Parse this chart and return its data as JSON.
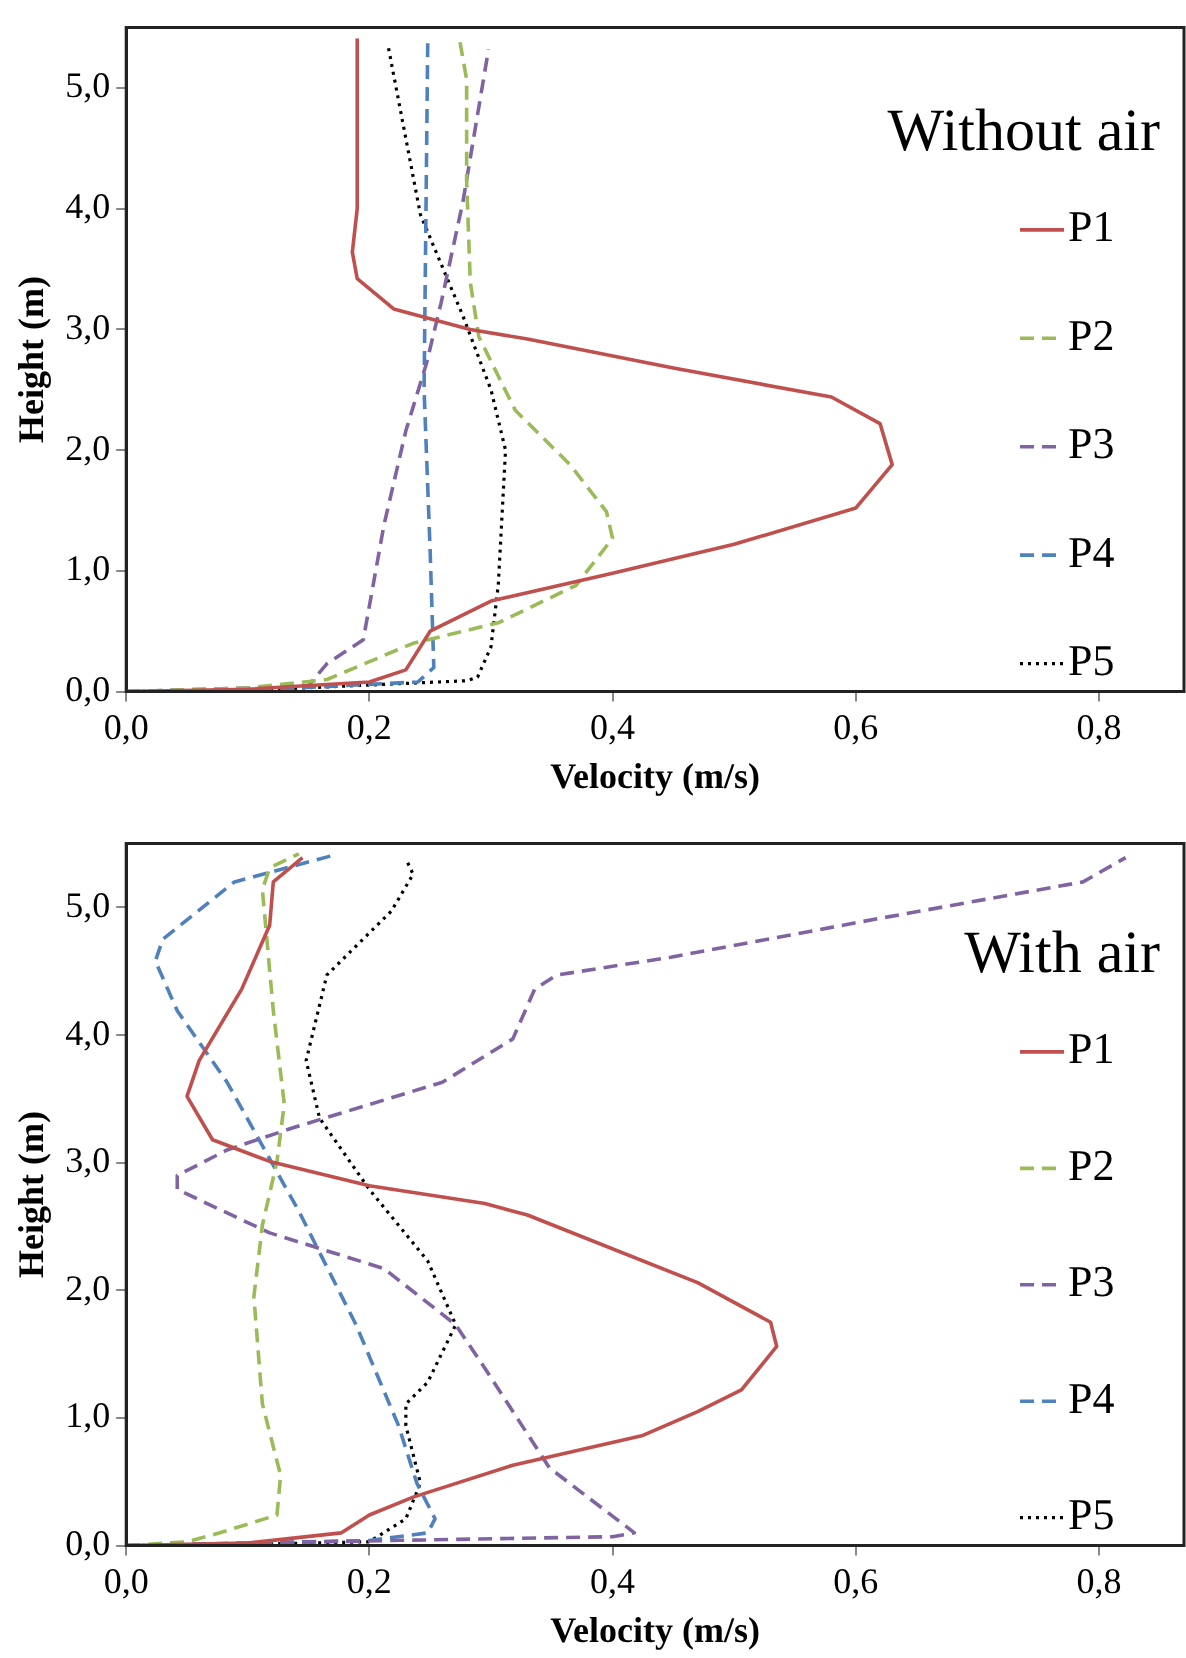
{
  "chart_data": [
    {
      "type": "line",
      "legend_title": "Without air",
      "xlabel": "Velocity (m/s)",
      "ylabel": "Height (m)",
      "legend": "right",
      "grid": false,
      "marker": "none",
      "xlim": [
        0,
        0.87
      ],
      "xticks": [
        {
          "value": 0,
          "label": "0,0"
        },
        {
          "value": 0.2,
          "label": "0,2"
        },
        {
          "value": 0.4,
          "label": "0,4"
        },
        {
          "value": 0.6,
          "label": "0,6"
        },
        {
          "value": 0.8,
          "label": "0,8"
        }
      ],
      "ylim": [
        0,
        5.5
      ],
      "yticks": [
        {
          "value": 0,
          "label": "0,0"
        },
        {
          "value": 1,
          "label": "1,0"
        },
        {
          "value": 2,
          "label": "2,0"
        },
        {
          "value": 3,
          "label": "3,0"
        },
        {
          "value": 4,
          "label": "4,0"
        },
        {
          "value": 5,
          "label": "5,0"
        }
      ],
      "series": [
        {
          "name": "P1",
          "color": "#c0504d",
          "line_style": "solid",
          "x": [
            0,
            0.1,
            0.2,
            0.23,
            0.25,
            0.3,
            0.4,
            0.5,
            0.6,
            0.63,
            0.62,
            0.58,
            0.45,
            0.33,
            0.283,
            0.22,
            0.19,
            0.186,
            0.19,
            0.19
          ],
          "values": [
            0,
            0.02,
            0.08,
            0.18,
            0.5,
            0.75,
            0.98,
            1.22,
            1.52,
            1.88,
            2.22,
            2.44,
            2.68,
            2.92,
            3.0,
            3.17,
            3.42,
            3.64,
            4.0,
            5.41
          ]
        },
        {
          "name": "P2",
          "color": "#9bbb59",
          "line_style": "dashed",
          "x": [
            0,
            0.1,
            0.165,
            0.236,
            0.306,
            0.37,
            0.4,
            0.395,
            0.365,
            0.32,
            0.29,
            0.283,
            0.28,
            0.28,
            0.274
          ],
          "values": [
            0,
            0.03,
            0.1,
            0.4,
            0.57,
            0.88,
            1.27,
            1.49,
            1.88,
            2.33,
            2.94,
            3.39,
            4.23,
            5.07,
            5.41
          ]
        },
        {
          "name": "P3",
          "color": "#8064a2",
          "line_style": "dashed",
          "x": [
            0,
            0.1,
            0.15,
            0.165,
            0.195,
            0.212,
            0.23,
            0.247,
            0.259,
            0.277,
            0.298
          ],
          "values": [
            0,
            0.03,
            0.05,
            0.23,
            0.43,
            1.38,
            2.16,
            2.72,
            3.22,
            4.06,
            5.32
          ]
        },
        {
          "name": "P4",
          "color": "#4f81bd",
          "line_style": "dashed",
          "x": [
            0,
            0.1,
            0.24,
            0.253,
            0.25,
            0.245,
            0.248
          ],
          "values": [
            0,
            0.01,
            0.08,
            0.2,
            1.16,
            2.5,
            5.37
          ]
        },
        {
          "name": "P5",
          "color": "#000000",
          "line_style": "dotted",
          "x": [
            0,
            0.1,
            0.28,
            0.289,
            0.3,
            0.306,
            0.312,
            0.3,
            0.277,
            0.242,
            0.215
          ],
          "values": [
            0,
            0.01,
            0.09,
            0.12,
            0.37,
            0.88,
            2.0,
            2.5,
            3.11,
            3.95,
            5.37
          ]
        }
      ]
    },
    {
      "type": "line",
      "legend_title": "With air",
      "xlabel": "Velocity (m/s)",
      "ylabel": "Height (m)",
      "legend": "right",
      "grid": false,
      "marker": "none",
      "xlim": [
        0,
        0.87
      ],
      "xticks": [
        {
          "value": 0,
          "label": "0,0"
        },
        {
          "value": 0.2,
          "label": "0,2"
        },
        {
          "value": 0.4,
          "label": "0,4"
        },
        {
          "value": 0.6,
          "label": "0,6"
        },
        {
          "value": 0.8,
          "label": "0,8"
        }
      ],
      "ylim": [
        0,
        5.5
      ],
      "yticks": [
        {
          "value": 0,
          "label": "0,0"
        },
        {
          "value": 1,
          "label": "1,0"
        },
        {
          "value": 2,
          "label": "2,0"
        },
        {
          "value": 3,
          "label": "3,0"
        },
        {
          "value": 4,
          "label": "4,0"
        },
        {
          "value": 5,
          "label": "5,0"
        }
      ],
      "series": [
        {
          "name": "P1",
          "color": "#c0504d",
          "line_style": "solid",
          "x": [
            0,
            0.1,
            0.177,
            0.2,
            0.236,
            0.318,
            0.424,
            0.47,
            0.506,
            0.535,
            0.53,
            0.47,
            0.33,
            0.295,
            0.2,
            0.118,
            0.071,
            0.05,
            0.06,
            0.095,
            0.118,
            0.121,
            0.145
          ],
          "values": [
            0,
            0.02,
            0.1,
            0.24,
            0.38,
            0.63,
            0.86,
            1.05,
            1.22,
            1.56,
            1.75,
            2.06,
            2.59,
            2.68,
            2.82,
            3.01,
            3.18,
            3.52,
            3.8,
            4.36,
            4.86,
            5.2,
            5.39
          ]
        },
        {
          "name": "P2",
          "color": "#9bbb59",
          "line_style": "dashed",
          "x": [
            0,
            0.05,
            0.077,
            0.124,
            0.127,
            0.112,
            0.105,
            0.112,
            0.124,
            0.13,
            0.121,
            0.112,
            0.118,
            0.142
          ],
          "values": [
            0,
            0.03,
            0.1,
            0.24,
            0.55,
            1.11,
            1.95,
            2.51,
            3.01,
            3.46,
            4.19,
            5.14,
            5.31,
            5.42
          ]
        },
        {
          "name": "P3",
          "color": "#8064a2",
          "line_style": "dashed",
          "x": [
            0,
            0.1,
            0.4,
            0.418,
            0.348,
            0.295,
            0.271,
            0.212,
            0.118,
            0.042,
            0.042,
            0.083,
            0.136,
            0.26,
            0.318,
            0.336,
            0.354,
            0.448,
            0.623,
            0.787,
            0.822
          ],
          "values": [
            0,
            0.02,
            0.07,
            0.1,
            0.61,
            1.39,
            1.73,
            2.17,
            2.45,
            2.79,
            2.9,
            3.1,
            3.27,
            3.63,
            3.97,
            4.36,
            4.47,
            4.61,
            4.92,
            5.2,
            5.39
          ]
        },
        {
          "name": "P4",
          "color": "#4f81bd",
          "line_style": "dashed",
          "x": [
            0,
            0.1,
            0.2,
            0.248,
            0.254,
            0.239,
            0.224,
            0.189,
            0.142,
            0.083,
            0.042,
            0.024,
            0.03,
            0.089,
            0.171
          ],
          "values": [
            0,
            0.02,
            0.04,
            0.1,
            0.21,
            0.49,
            0.94,
            1.73,
            2.62,
            3.63,
            4.19,
            4.58,
            4.75,
            5.2,
            5.41
          ]
        },
        {
          "name": "P5",
          "color": "#000000",
          "line_style": "dotted",
          "x": [
            0,
            0.1,
            0.2,
            0.23,
            0.242,
            0.23,
            0.23,
            0.248,
            0.271,
            0.248,
            0.2,
            0.159,
            0.148,
            0.165,
            0.218,
            0.236,
            0.23
          ],
          "values": [
            0,
            0.01,
            0.03,
            0.21,
            0.49,
            0.94,
            1.11,
            1.28,
            1.73,
            2.23,
            2.79,
            3.35,
            3.8,
            4.47,
            4.97,
            5.26,
            5.38
          ]
        }
      ]
    }
  ]
}
